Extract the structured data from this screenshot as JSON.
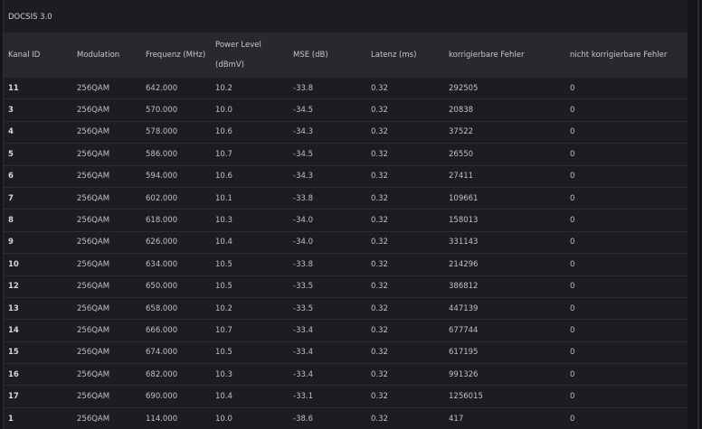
{
  "title": "DOCSIS 3.0",
  "columns": [
    "Kanal ID",
    "Modulation",
    "Frequenz (MHz)",
    "Power Level (dBmV)",
    "MSE (dB)",
    "Latenz (ms)",
    "korrigierbare Fehler",
    "nicht korrigierbare Fehler"
  ],
  "power_header": {
    "line1": "Power Level",
    "line2": "(dBmV)"
  },
  "rows": [
    [
      "11",
      "256QAM",
      "642.000",
      "10.2",
      "-33.8",
      "0.32",
      "292505",
      "0"
    ],
    [
      "3",
      "256QAM",
      "570.000",
      "10.0",
      "-34.5",
      "0.32",
      "20838",
      "0"
    ],
    [
      "4",
      "256QAM",
      "578.000",
      "10.6",
      "-34.3",
      "0.32",
      "37522",
      "0"
    ],
    [
      "5",
      "256QAM",
      "586.000",
      "10.7",
      "-34.5",
      "0.32",
      "26550",
      "0"
    ],
    [
      "6",
      "256QAM",
      "594.000",
      "10.6",
      "-34.3",
      "0.32",
      "27411",
      "0"
    ],
    [
      "7",
      "256QAM",
      "602.000",
      "10.1",
      "-33.8",
      "0.32",
      "109661",
      "0"
    ],
    [
      "8",
      "256QAM",
      "618.000",
      "10.3",
      "-34.0",
      "0.32",
      "158013",
      "0"
    ],
    [
      "9",
      "256QAM",
      "626.000",
      "10.4",
      "-34.0",
      "0.32",
      "331143",
      "0"
    ],
    [
      "10",
      "256QAM",
      "634.000",
      "10.5",
      "-33.8",
      "0.32",
      "214296",
      "0"
    ],
    [
      "12",
      "256QAM",
      "650.000",
      "10.5",
      "-33.5",
      "0.32",
      "386812",
      "0"
    ],
    [
      "13",
      "256QAM",
      "658.000",
      "10.2",
      "-33.5",
      "0.32",
      "447139",
      "0"
    ],
    [
      "14",
      "256QAM",
      "666.000",
      "10.7",
      "-33.4",
      "0.32",
      "677744",
      "0"
    ],
    [
      "15",
      "256QAM",
      "674.000",
      "10.5",
      "-33.4",
      "0.32",
      "617195",
      "0"
    ],
    [
      "16",
      "256QAM",
      "682.000",
      "10.3",
      "-33.4",
      "0.32",
      "991326",
      "0"
    ],
    [
      "17",
      "256QAM",
      "690.000",
      "10.4",
      "-33.1",
      "0.32",
      "1256015",
      "0"
    ],
    [
      "1",
      "256QAM",
      "114.000",
      "10.0",
      "-38.6",
      "0.32",
      "417",
      "0"
    ]
  ]
}
